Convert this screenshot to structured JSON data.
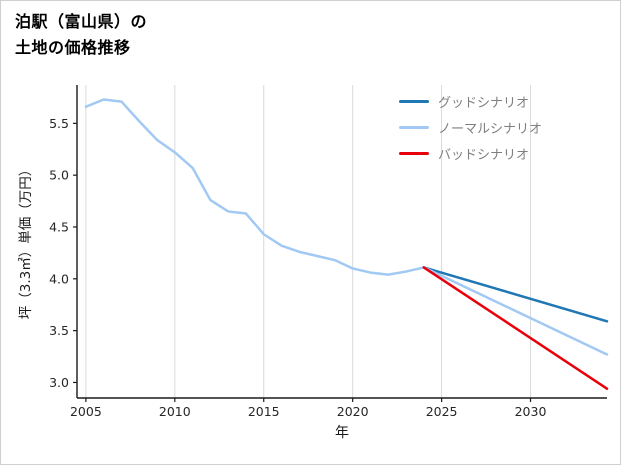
{
  "chart_data": {
    "type": "line",
    "title": "泊駅（富山県）の土地の価格推移",
    "title_lines": [
      "泊駅（富山県）の",
      "土地の価格推移"
    ],
    "xlabel": "年",
    "ylabel": "坪（3.3㎡）単価（万円）",
    "xlim": [
      2004.5,
      2034.3
    ],
    "ylim": [
      2.85,
      5.87
    ],
    "xticks": [
      2005,
      2010,
      2015,
      2020,
      2025,
      2030
    ],
    "yticks": [
      3.0,
      3.5,
      4.0,
      4.5,
      5.0,
      5.5
    ],
    "grid": "vertical-only",
    "legend_position": "upper-right-inside",
    "colors": {
      "grid": "#d9d9d9",
      "axis": "#1a1a1a",
      "tick_label": "#262626",
      "background": "#ffffff",
      "border": "#cfcfcf",
      "good": "#1f77b4",
      "normal": "#a1c9f4",
      "bad": "#e8000b"
    },
    "series": [
      {
        "name": "history",
        "color": "#a1c9f4",
        "x": [
          2005,
          2006,
          2007,
          2008,
          2009,
          2010,
          2011,
          2012,
          2013,
          2014,
          2015,
          2016,
          2017,
          2018,
          2019,
          2020,
          2021,
          2022,
          2023,
          2024
        ],
        "y": [
          5.66,
          5.73,
          5.71,
          5.52,
          5.34,
          5.22,
          5.07,
          4.76,
          4.65,
          4.63,
          4.43,
          4.32,
          4.26,
          4.22,
          4.18,
          4.1,
          4.06,
          4.04,
          4.07,
          4.11
        ]
      },
      {
        "name": "グッドシナリオ",
        "color": "#1f77b4",
        "x": [
          2024,
          2034.3
        ],
        "y": [
          4.11,
          3.59
        ]
      },
      {
        "name": "ノーマルシナリオ",
        "color": "#a1c9f4",
        "x": [
          2024,
          2034.3
        ],
        "y": [
          4.11,
          3.27
        ]
      },
      {
        "name": "バッドシナリオ",
        "color": "#e8000b",
        "x": [
          2024,
          2034.3
        ],
        "y": [
          4.11,
          2.94
        ]
      }
    ],
    "legend": [
      {
        "label": "グッドシナリオ",
        "color": "#1f77b4"
      },
      {
        "label": "ノーマルシナリオ",
        "color": "#a1c9f4"
      },
      {
        "label": "バッドシナリオ",
        "color": "#e8000b"
      }
    ]
  }
}
